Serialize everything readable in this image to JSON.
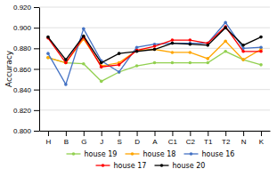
{
  "chart_data": {
    "type": "line",
    "y_label": "Accuracy",
    "categories": [
      "H",
      "B",
      "G",
      "J",
      "S",
      "D",
      "A",
      "C1",
      "C2",
      "T1",
      "T2",
      "N",
      "K"
    ],
    "series": [
      {
        "name": "house 19",
        "color": "#92d050",
        "values": [
          0.871,
          0.866,
          0.865,
          0.848,
          0.857,
          0.863,
          0.866,
          0.866,
          0.866,
          0.866,
          0.877,
          0.869,
          0.864
        ]
      },
      {
        "name": "house 18",
        "color": "#ffa500",
        "values": [
          0.871,
          0.866,
          0.889,
          0.863,
          0.866,
          0.878,
          0.879,
          0.876,
          0.876,
          0.87,
          0.887,
          0.869,
          0.879
        ]
      },
      {
        "name": "house 16",
        "color": "#4472c4",
        "values": [
          0.875,
          0.845,
          0.899,
          0.868,
          0.857,
          0.881,
          0.884,
          0.885,
          0.885,
          0.885,
          0.905,
          0.88,
          0.881
        ]
      },
      {
        "name": "house 17",
        "color": "#ff0000",
        "values": [
          0.89,
          0.866,
          0.891,
          0.862,
          0.864,
          0.878,
          0.882,
          0.888,
          0.888,
          0.885,
          0.901,
          0.877,
          0.877
        ]
      },
      {
        "name": "house 20",
        "color": "#000000",
        "values": [
          0.891,
          0.869,
          0.892,
          0.866,
          0.875,
          0.877,
          0.879,
          0.885,
          0.884,
          0.883,
          0.9,
          0.883,
          0.891
        ]
      }
    ],
    "ylim": [
      0.8,
      0.92
    ],
    "yticks": [
      {
        "value": 0.8,
        "label": "0.800"
      },
      {
        "value": 0.82,
        "label": "0.820"
      },
      {
        "value": 0.84,
        "label": "0.840"
      },
      {
        "value": 0.86,
        "label": "0.860"
      },
      {
        "value": 0.88,
        "label": "0.880"
      },
      {
        "value": 0.9,
        "label": "0.900"
      },
      {
        "value": 0.92,
        "label": "0.920"
      }
    ],
    "grid": true,
    "marker": "circle"
  }
}
